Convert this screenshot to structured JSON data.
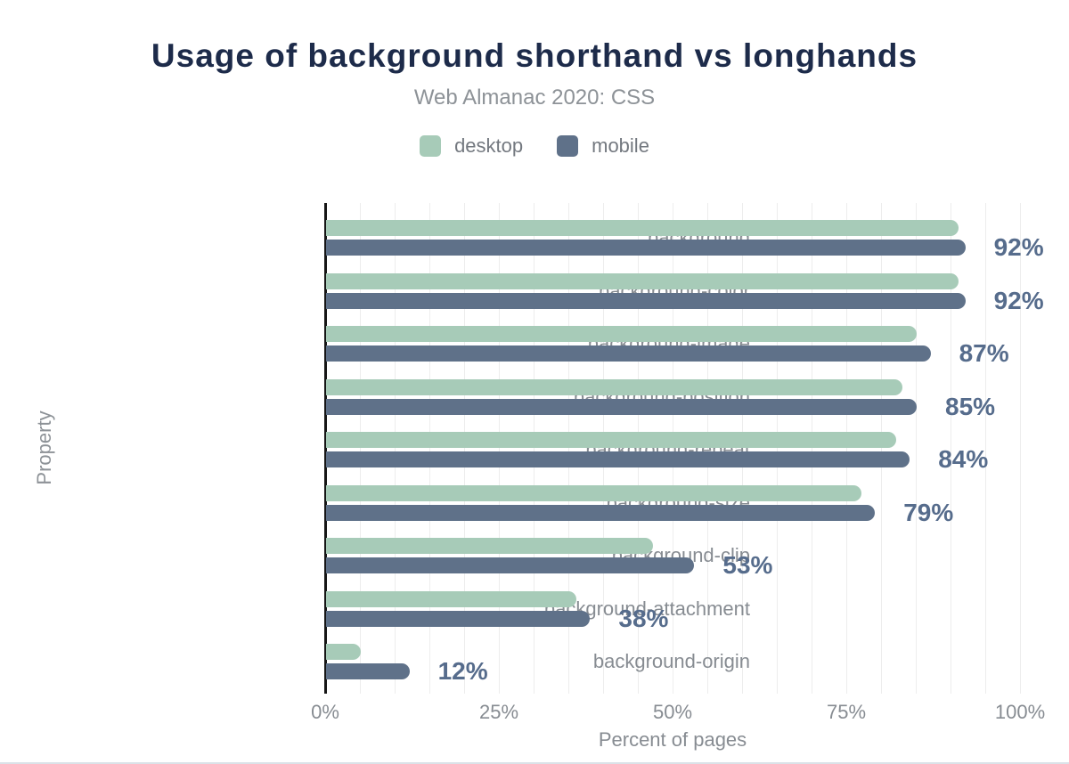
{
  "chart_data": {
    "type": "bar",
    "orientation": "horizontal-grouped",
    "title": "Usage of background shorthand vs longhands",
    "subtitle": "Web Almanac 2020: CSS",
    "xlabel": "Percent of pages",
    "ylabel": "Property",
    "categories": [
      "background",
      "background-color",
      "background-image",
      "background-position",
      "background-repeat",
      "background-size",
      "background-clip",
      "background-attachment",
      "background-origin"
    ],
    "series": [
      {
        "name": "desktop",
        "color": "#a7cbb8",
        "values": [
          91,
          91,
          85,
          83,
          82,
          77,
          47,
          36,
          5
        ]
      },
      {
        "name": "mobile",
        "color": "#5f7189",
        "values": [
          92,
          92,
          87,
          85,
          84,
          79,
          53,
          38,
          12
        ]
      }
    ],
    "data_labels": [
      "92%",
      "92%",
      "87%",
      "85%",
      "84%",
      "79%",
      "53%",
      "38%",
      "12%"
    ],
    "x_ticks": [
      {
        "value": 0,
        "label": "0%"
      },
      {
        "value": 25,
        "label": "25%"
      },
      {
        "value": 50,
        "label": "50%"
      },
      {
        "value": 75,
        "label": "75%"
      },
      {
        "value": 100,
        "label": "100%"
      }
    ],
    "xlim": [
      0,
      100
    ],
    "grid": "vertical minor gridlines every 5%",
    "legend_position": "top-center"
  },
  "colors": {
    "title": "#1d2b4a",
    "subtitle": "#8d9297",
    "axis_text": "#878c92",
    "legend_text": "#73787f",
    "value_label": "#566c8c",
    "desktop_bar": "#a7cbb8",
    "mobile_bar": "#5f7189",
    "gridline": "#ededed",
    "axis_line": "#161616",
    "bottom_rule": "#dbe2e8"
  }
}
